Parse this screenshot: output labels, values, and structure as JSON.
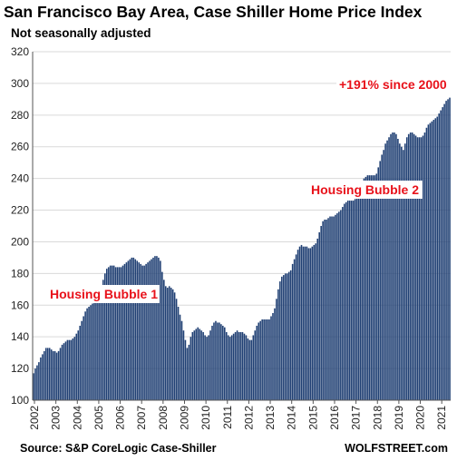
{
  "chart_data": {
    "type": "bar",
    "title": "San Francisco Bay Area, Case Shiller Home Price Index",
    "subtitle": "Not seasonally adjusted",
    "ylim": [
      100,
      320
    ],
    "yticks": [
      100,
      120,
      140,
      160,
      180,
      200,
      220,
      240,
      260,
      280,
      300,
      320
    ],
    "xticks": [
      "2002",
      "2003",
      "2004",
      "2005",
      "2006",
      "2007",
      "2008",
      "2009",
      "2010",
      "2011",
      "2012",
      "2013",
      "2014",
      "2015",
      "2016",
      "2017",
      "2018",
      "2019",
      "2020",
      "2021"
    ],
    "grid": true,
    "bar_color": "#1f3f73",
    "annotation_color": "#e8111a",
    "start": "2002-01",
    "frequency": "monthly",
    "values": [
      117,
      120,
      122,
      124,
      127,
      129,
      131,
      133,
      133,
      133,
      132,
      131,
      131,
      130,
      131,
      133,
      135,
      136,
      137,
      138,
      138,
      138,
      139,
      140,
      142,
      144,
      147,
      150,
      153,
      156,
      158,
      159,
      160,
      161,
      162,
      163,
      165,
      168,
      172,
      176,
      180,
      183,
      184,
      185,
      185,
      185,
      184,
      184,
      184,
      184,
      185,
      186,
      187,
      188,
      189,
      190,
      190,
      189,
      188,
      187,
      186,
      185,
      185,
      186,
      187,
      188,
      189,
      190,
      191,
      191,
      190,
      188,
      181,
      176,
      172,
      171,
      172,
      171,
      170,
      168,
      164,
      159,
      154,
      150,
      144,
      138,
      133,
      135,
      140,
      143,
      144,
      145,
      146,
      145,
      144,
      143,
      141,
      140,
      141,
      144,
      147,
      149,
      150,
      149,
      149,
      148,
      147,
      146,
      143,
      141,
      140,
      141,
      142,
      143,
      144,
      143,
      143,
      143,
      142,
      141,
      139,
      138,
      138,
      141,
      144,
      147,
      149,
      150,
      151,
      151,
      151,
      151,
      151,
      153,
      155,
      158,
      164,
      170,
      175,
      178,
      179,
      180,
      180,
      181,
      182,
      186,
      189,
      192,
      195,
      197,
      198,
      197,
      197,
      197,
      196,
      196,
      197,
      198,
      199,
      202,
      206,
      210,
      213,
      214,
      214,
      215,
      216,
      216,
      216,
      217,
      218,
      219,
      220,
      222,
      224,
      225,
      226,
      226,
      226,
      226,
      227,
      229,
      232,
      235,
      238,
      240,
      241,
      242,
      242,
      242,
      242,
      242,
      243,
      247,
      251,
      255,
      258,
      262,
      264,
      266,
      268,
      269,
      269,
      268,
      265,
      262,
      260,
      258,
      262,
      266,
      268,
      269,
      269,
      268,
      267,
      266,
      266,
      266,
      267,
      269,
      272,
      274,
      275,
      276,
      277,
      278,
      279,
      281,
      283,
      285,
      287,
      289,
      290,
      291
    ],
    "annotations": [
      {
        "text": "Housing Bubble 1",
        "at": "2005-10"
      },
      {
        "text": "Housing Bubble 2",
        "at": "2017-06"
      },
      {
        "text": "+191% since 2000",
        "at": "2020-06"
      }
    ],
    "source": "Source: S&P CoreLogic Case-Shiller",
    "brand": "WOLFSTREET.com"
  }
}
